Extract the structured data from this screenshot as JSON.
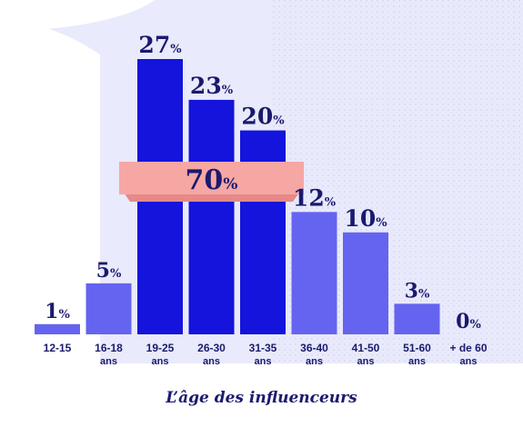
{
  "chart_data": {
    "type": "bar",
    "title": "L’âge des influenceurs",
    "categories": [
      "12-15",
      "16-18 ans",
      "19-25 ans",
      "26-30 ans",
      "31-35 ans",
      "36-40 ans",
      "41-50 ans",
      "51-60 ans",
      "+ de 60 ans"
    ],
    "category_lines": [
      [
        "12-15"
      ],
      [
        "16-18",
        "ans"
      ],
      [
        "19-25",
        "ans"
      ],
      [
        "26-30",
        "ans"
      ],
      [
        "31-35",
        "ans"
      ],
      [
        "36-40",
        "ans"
      ],
      [
        "41-50",
        "ans"
      ],
      [
        "51-60",
        "ans"
      ],
      [
        "+ de 60",
        "ans"
      ]
    ],
    "values": [
      1,
      5,
      27,
      23,
      20,
      12,
      10,
      3,
      0
    ],
    "value_unit": "%",
    "ylim": [
      0,
      27
    ],
    "highlight": {
      "label_value": "70",
      "label_unit": "%",
      "range": [
        "19-25 ans",
        "31-35 ans"
      ]
    },
    "colors": {
      "highlight_bar": "#1414dc",
      "bar": "#6464f0",
      "band": "#f6a7a4",
      "text": "#1a1a6e",
      "backdrop": "#e9eafb"
    },
    "grid": false,
    "legend": "none"
  }
}
